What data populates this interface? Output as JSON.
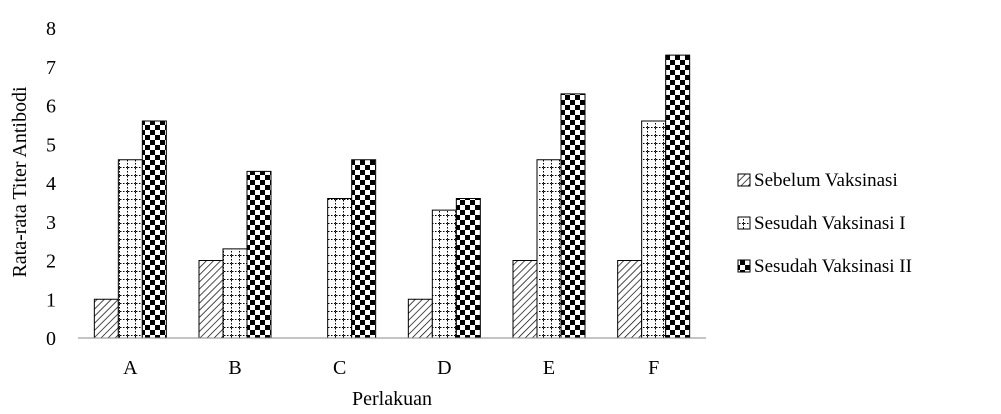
{
  "chart_data": {
    "type": "bar",
    "title": "",
    "xlabel": "Perlakuan",
    "ylabel": "Rata-rata Titer Antibodi",
    "categories": [
      "A",
      "B",
      "C",
      "D",
      "E",
      "F"
    ],
    "ylim": [
      0,
      8
    ],
    "yticks": [
      "0",
      "1",
      "2",
      "3",
      "4",
      "5",
      "6",
      "7",
      "8"
    ],
    "grid": false,
    "legend_position": "right",
    "series": [
      {
        "name": "Sebelum Vaksinasi",
        "values": [
          1,
          2,
          0,
          1,
          2,
          2
        ],
        "pattern": "diagonal-hatch"
      },
      {
        "name": "Sesudah Vaksinasi I",
        "values": [
          4.6,
          2.3,
          3.6,
          3.3,
          4.6,
          5.6
        ],
        "pattern": "dotted-grid"
      },
      {
        "name": "Sesudah Vaksinasi II",
        "values": [
          5.6,
          4.3,
          4.6,
          3.6,
          6.3,
          7.3
        ],
        "pattern": "checkerboard"
      }
    ]
  }
}
